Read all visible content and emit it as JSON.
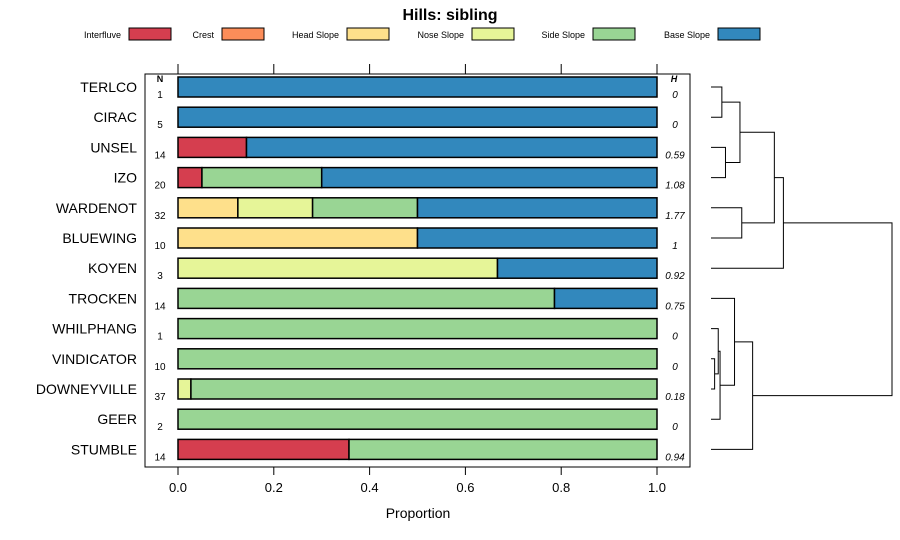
{
  "chart_data": {
    "type": "stacked-bar",
    "title": "Hills: sibling",
    "xlabel": "Proportion",
    "xlim": [
      0,
      1
    ],
    "xticks": [
      0.0,
      0.2,
      0.4,
      0.6,
      0.8,
      1.0
    ],
    "xtick_labels": [
      "0.0",
      "0.2",
      "0.4",
      "0.6",
      "0.8",
      "1.0"
    ],
    "n_header": "N",
    "h_header": "H",
    "legend": [
      {
        "name": "Interfluve",
        "color": "#d53e4f"
      },
      {
        "name": "Crest",
        "color": "#fc8d59"
      },
      {
        "name": "Head Slope",
        "color": "#fee08b"
      },
      {
        "name": "Nose Slope",
        "color": "#e6f598"
      },
      {
        "name": "Side Slope",
        "color": "#99d594"
      },
      {
        "name": "Base Slope",
        "color": "#3288bd"
      }
    ],
    "rows": [
      {
        "label": "TERLCO",
        "n": "1",
        "h": "0",
        "values": [
          0,
          0,
          0,
          0,
          0,
          1.0
        ]
      },
      {
        "label": "CIRAC",
        "n": "5",
        "h": "0",
        "values": [
          0,
          0,
          0,
          0,
          0,
          1.0
        ]
      },
      {
        "label": "UNSEL",
        "n": "14",
        "h": "0.59",
        "values": [
          0.143,
          0,
          0,
          0,
          0,
          0.857
        ]
      },
      {
        "label": "IZO",
        "n": "20",
        "h": "1.08",
        "values": [
          0.05,
          0,
          0,
          0,
          0.25,
          0.7
        ]
      },
      {
        "label": "WARDENOT",
        "n": "32",
        "h": "1.77",
        "values": [
          0,
          0,
          0.125,
          0.156,
          0.219,
          0.5
        ]
      },
      {
        "label": "BLUEWING",
        "n": "10",
        "h": "1",
        "values": [
          0,
          0,
          0.5,
          0,
          0,
          0.5
        ]
      },
      {
        "label": "KOYEN",
        "n": "3",
        "h": "0.92",
        "values": [
          0,
          0,
          0,
          0.667,
          0,
          0.333
        ]
      },
      {
        "label": "TROCKEN",
        "n": "14",
        "h": "0.75",
        "values": [
          0,
          0,
          0,
          0,
          0.786,
          0.214
        ]
      },
      {
        "label": "WHILPHANG",
        "n": "1",
        "h": "0",
        "values": [
          0,
          0,
          0,
          0,
          1.0,
          0
        ]
      },
      {
        "label": "VINDICATOR",
        "n": "10",
        "h": "0",
        "values": [
          0,
          0,
          0,
          0,
          1.0,
          0
        ]
      },
      {
        "label": "DOWNEYVILLE",
        "n": "37",
        "h": "0.18",
        "values": [
          0,
          0,
          0,
          0.027,
          0.973,
          0
        ]
      },
      {
        "label": "GEER",
        "n": "2",
        "h": "0",
        "values": [
          0,
          0,
          0,
          0,
          1.0,
          0
        ]
      },
      {
        "label": "STUMBLE",
        "n": "14",
        "h": "0.94",
        "values": [
          0.357,
          0,
          0,
          0,
          0.643,
          0
        ]
      }
    ],
    "dendrogram": [
      {
        "a": 0,
        "b": 1,
        "height": 0.06
      },
      {
        "a": 2,
        "b": 3,
        "height": 0.08
      },
      {
        "a": "m0",
        "b": "m1",
        "height": 0.16
      },
      {
        "a": 4,
        "b": 5,
        "height": 0.17
      },
      {
        "a": "m2",
        "b": "m3",
        "height": 0.35
      },
      {
        "a": "m4",
        "b": 6,
        "height": 0.4
      },
      {
        "a": 9,
        "b": 10,
        "height": 0.02
      },
      {
        "a": 8,
        "b": "m6",
        "height": 0.04
      },
      {
        "a": "m7",
        "b": 11,
        "height": 0.05
      },
      {
        "a": 7,
        "b": "m8",
        "height": 0.13
      },
      {
        "a": "m9",
        "b": 12,
        "height": 0.23
      },
      {
        "a": "m5",
        "b": "m10",
        "height": 1.0
      }
    ]
  }
}
